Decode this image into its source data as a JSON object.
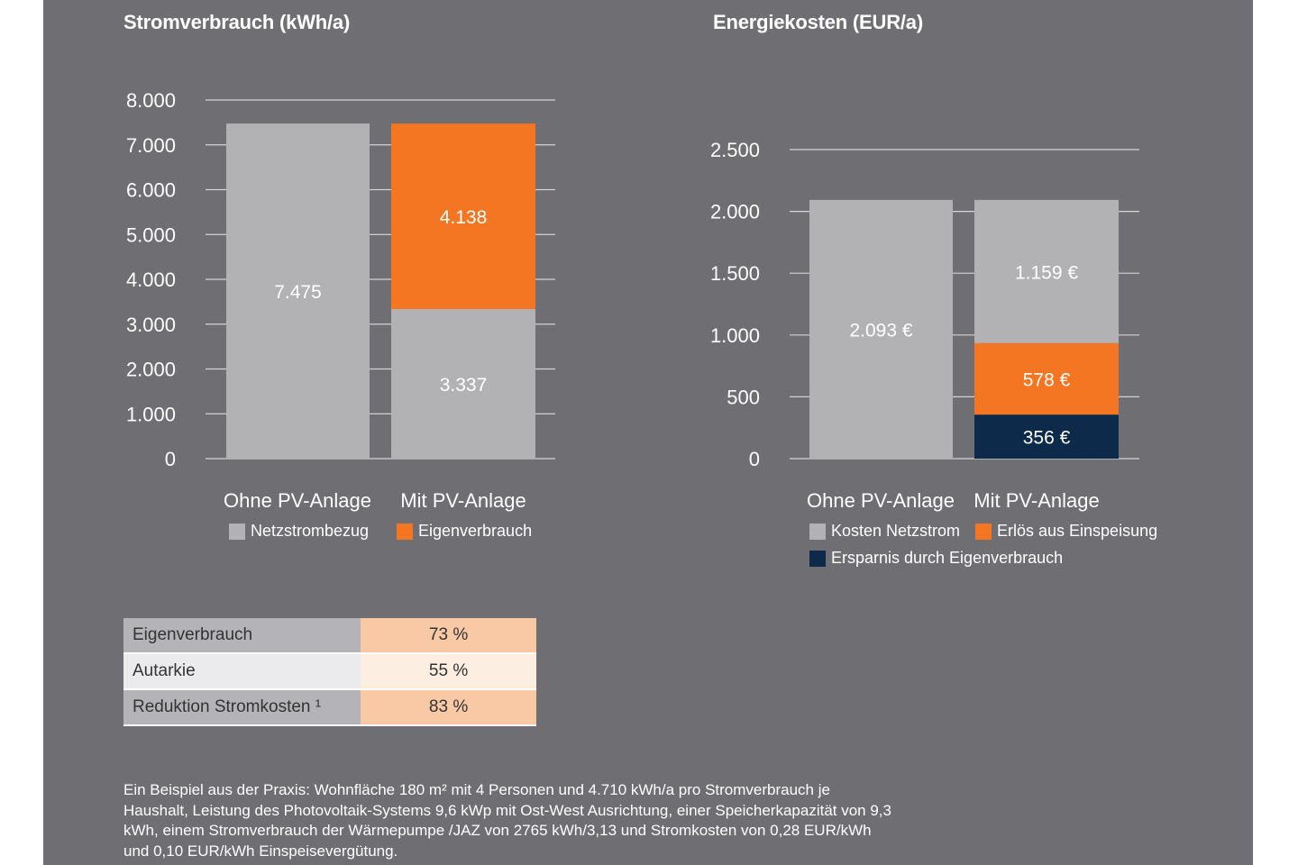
{
  "chart_data": [
    {
      "type": "bar",
      "stacked": true,
      "title": "Stromverbrauch (kWh/a)",
      "categories": [
        "Ohne PV-Anlage",
        "Mit PV-Anlage"
      ],
      "series": [
        {
          "name": "Netzstrombezug",
          "values": [
            7475,
            3337
          ],
          "labels": [
            "7.475",
            "3.337"
          ],
          "color": "#b2b2b4"
        },
        {
          "name": "Eigenverbrauch",
          "values": [
            0,
            4138
          ],
          "labels": [
            "",
            "4.138"
          ],
          "color": "#f47623"
        }
      ],
      "ylim": [
        0,
        8000
      ],
      "yticks": [
        {
          "value": 0,
          "label": "0"
        },
        {
          "value": 1000,
          "label": "1.000"
        },
        {
          "value": 2000,
          "label": "2.000"
        },
        {
          "value": 3000,
          "label": "3.000"
        },
        {
          "value": 4000,
          "label": "4.000"
        },
        {
          "value": 5000,
          "label": "5.000"
        },
        {
          "value": 6000,
          "label": "6.000"
        },
        {
          "value": 7000,
          "label": "7.000"
        },
        {
          "value": 8000,
          "label": "8.000"
        }
      ],
      "legend": "below"
    },
    {
      "type": "bar",
      "stacked": true,
      "title": "Energiekosten (EUR/a)",
      "categories": [
        "Ohne PV-Anlage",
        "Mit PV-Anlage"
      ],
      "series": [
        {
          "name": "Ersparnis durch Eigenverbrauch",
          "values": [
            0,
            356
          ],
          "labels": [
            "",
            "356 €"
          ],
          "color": "#0d2a4a"
        },
        {
          "name": "Erlös aus Einspeisung",
          "values": [
            0,
            578
          ],
          "labels": [
            "",
            "578 €"
          ],
          "color": "#f47623"
        },
        {
          "name": "Kosten Netzstrom",
          "values": [
            2093,
            1159
          ],
          "labels": [
            "2.093 €",
            "1.159 €"
          ],
          "color": "#b2b2b4"
        }
      ],
      "ylim": [
        0,
        2500
      ],
      "yticks": [
        {
          "value": 0,
          "label": "0"
        },
        {
          "value": 500,
          "label": "500"
        },
        {
          "value": 1000,
          "label": "1.000"
        },
        {
          "value": 1500,
          "label": "1.500"
        },
        {
          "value": 2000,
          "label": "2.000"
        },
        {
          "value": 2500,
          "label": "2.500"
        }
      ],
      "legend": "below"
    }
  ],
  "legend_left": [
    {
      "label": "Netzstrombezug",
      "color": "#b2b2b4"
    },
    {
      "label": "Eigenverbrauch",
      "color": "#f47623"
    }
  ],
  "legend_right": [
    {
      "label": "Kosten Netzstrom",
      "color": "#b2b2b4"
    },
    {
      "label": "Erlös aus Einspeisung",
      "color": "#f47623"
    },
    {
      "label": "Ersparnis durch Eigenverbrauch",
      "color": "#0d2a4a"
    }
  ],
  "stats_table": [
    {
      "label": "Eigenverbrauch",
      "value": "73 %"
    },
    {
      "label": "Autarkie",
      "value": "55 %"
    },
    {
      "label": "Reduktion Stromkosten ¹",
      "value": "83 %"
    }
  ],
  "footnote": "Ein Beispiel aus der Praxis: Wohnfläche 180 m² mit 4 Personen und 4.710 kWh/a pro Stromverbrauch je Haushalt, Leistung des Photovoltaik-Systems 9,6 kWp mit Ost-West Ausrichtung, einer Speicherkapazität von 9,3 kWh, einem Stromverbrauch der Wärmepumpe /JAZ von 2765 kWh/3,13 und Stromkosten von 0,28 EUR/kWh und 0,10 EUR/kWh Einspeisevergütung.",
  "colors": {
    "panel": "#6e6e73",
    "grey": "#b2b2b4",
    "orange": "#f47623",
    "navy": "#0d2a4a"
  }
}
